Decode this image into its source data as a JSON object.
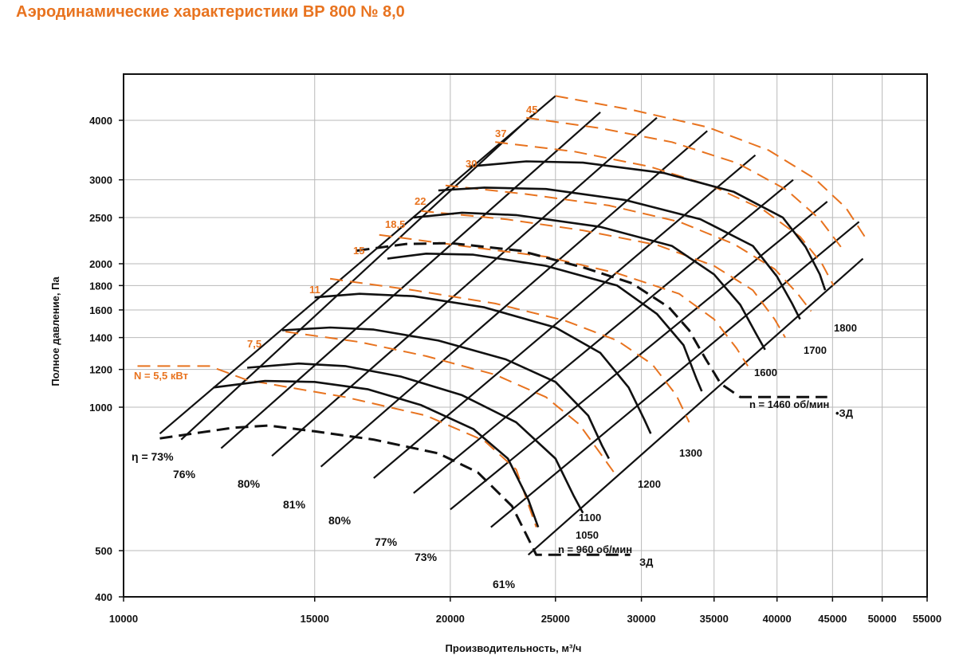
{
  "title": "Аэродинамические характеристики ВР 800 № 8,0",
  "chart_data": {
    "type": "line",
    "title": "Аэродинамические характеристики ВР 800 № 8,0",
    "xlabel": "Производительность, м³/ч",
    "ylabel": "Полное давление, Па",
    "xscale": "log",
    "yscale": "log",
    "xlim": [
      10000,
      55000
    ],
    "ylim": [
      400,
      5000
    ],
    "grid": true,
    "colors": {
      "black": "#111111",
      "orange": "#e8731f",
      "grid": "#b9b9b9",
      "frame": "#111111"
    },
    "x_ticks": [
      {
        "v": 10000,
        "label": "10000"
      },
      {
        "v": 15000,
        "label": "15000"
      },
      {
        "v": 20000,
        "label": "20000"
      },
      {
        "v": 25000,
        "label": "25000"
      },
      {
        "v": 30000,
        "label": "30000"
      },
      {
        "v": 35000,
        "label": "35000"
      },
      {
        "v": 40000,
        "label": "40000"
      },
      {
        "v": 45000,
        "label": "45000"
      },
      {
        "v": 50000,
        "label": "50000"
      },
      {
        "v": 55000,
        "label": "55000"
      }
    ],
    "y_ticks": [
      {
        "v": 400,
        "label": "400"
      },
      {
        "v": 500,
        "label": "500"
      },
      {
        "v": 1000,
        "label": "1000"
      },
      {
        "v": 1200,
        "label": "1200"
      },
      {
        "v": 1400,
        "label": "1400"
      },
      {
        "v": 1600,
        "label": "1600"
      },
      {
        "v": 1800,
        "label": "1800"
      },
      {
        "v": 2000,
        "label": "2000"
      },
      {
        "v": 2500,
        "label": "2500"
      },
      {
        "v": 3000,
        "label": "3000"
      },
      {
        "v": 4000,
        "label": "4000"
      }
    ],
    "pressure_curves": [
      {
        "rpm": "960",
        "points": [
          [
            12100,
            1100
          ],
          [
            13500,
            1135
          ],
          [
            15000,
            1130
          ],
          [
            16800,
            1090
          ],
          [
            18800,
            1010
          ],
          [
            21000,
            900
          ],
          [
            22600,
            780
          ],
          [
            23600,
            640
          ],
          [
            24100,
            560
          ]
        ]
      },
      {
        "rpm": "1050",
        "points": [
          [
            13000,
            1210
          ],
          [
            14500,
            1235
          ],
          [
            16000,
            1220
          ],
          [
            18000,
            1160
          ],
          [
            20500,
            1060
          ],
          [
            23000,
            930
          ],
          [
            25000,
            780
          ],
          [
            26000,
            650
          ],
          [
            26500,
            600
          ]
        ]
      },
      {
        "rpm": "1100",
        "points": [
          [
            14000,
            1450
          ],
          [
            15500,
            1470
          ],
          [
            17000,
            1455
          ],
          [
            19500,
            1380
          ],
          [
            22500,
            1260
          ],
          [
            25000,
            1130
          ],
          [
            26800,
            960
          ],
          [
            27600,
            830
          ],
          [
            28000,
            780
          ]
        ]
      },
      {
        "rpm": "1200",
        "points": [
          [
            15000,
            1700
          ],
          [
            16500,
            1730
          ],
          [
            18500,
            1710
          ],
          [
            21500,
            1620
          ],
          [
            25000,
            1470
          ],
          [
            27500,
            1300
          ],
          [
            29200,
            1100
          ],
          [
            30200,
            940
          ],
          [
            30600,
            880
          ]
        ]
      },
      {
        "rpm": "1300",
        "points": [
          [
            17500,
            2050
          ],
          [
            19000,
            2100
          ],
          [
            21000,
            2090
          ],
          [
            24500,
            1980
          ],
          [
            28500,
            1800
          ],
          [
            31000,
            1570
          ],
          [
            32800,
            1350
          ],
          [
            33700,
            1150
          ],
          [
            34100,
            1080
          ]
        ]
      },
      {
        "rpm": "1460",
        "points": [
          [
            18500,
            2500
          ],
          [
            20500,
            2560
          ],
          [
            23000,
            2530
          ],
          [
            27500,
            2390
          ],
          [
            32000,
            2180
          ],
          [
            35000,
            1900
          ],
          [
            37000,
            1640
          ],
          [
            38300,
            1420
          ],
          [
            39000,
            1320
          ]
        ]
      },
      {
        "rpm": "1600",
        "points": [
          [
            19500,
            2850
          ],
          [
            21500,
            2890
          ],
          [
            24500,
            2870
          ],
          [
            29000,
            2720
          ],
          [
            34000,
            2480
          ],
          [
            38000,
            2180
          ],
          [
            40000,
            1880
          ],
          [
            41300,
            1650
          ],
          [
            42000,
            1530
          ]
        ]
      },
      {
        "rpm": "1700",
        "points": [
          [
            20800,
            3200
          ],
          [
            23500,
            3280
          ],
          [
            26500,
            3260
          ],
          [
            31500,
            3100
          ],
          [
            36500,
            2830
          ],
          [
            40500,
            2500
          ],
          [
            42500,
            2170
          ],
          [
            43800,
            1900
          ],
          [
            44300,
            1760
          ]
        ]
      }
    ],
    "power_lines": [
      {
        "label": "N = 5,5 кВт",
        "points": [
          [
            10300,
            1220
          ],
          [
            12000,
            1220
          ],
          [
            13000,
            1140
          ],
          [
            16000,
            1050
          ],
          [
            19000,
            960
          ],
          [
            21500,
            850
          ],
          [
            23000,
            740
          ],
          [
            24000,
            560
          ]
        ]
      },
      {
        "label": "7,5",
        "points": [
          [
            14100,
            1440
          ],
          [
            16500,
            1370
          ],
          [
            19000,
            1280
          ],
          [
            22000,
            1170
          ],
          [
            24500,
            1050
          ],
          [
            26300,
            920
          ],
          [
            27500,
            800
          ],
          [
            28300,
            730
          ]
        ]
      },
      {
        "label": "11",
        "points": [
          [
            15500,
            1860
          ],
          [
            18500,
            1760
          ],
          [
            22000,
            1650
          ],
          [
            25500,
            1520
          ],
          [
            28500,
            1380
          ],
          [
            30700,
            1230
          ],
          [
            32300,
            1060
          ],
          [
            33200,
            930
          ]
        ]
      },
      {
        "label": "15",
        "points": [
          [
            17200,
            2300
          ],
          [
            20500,
            2180
          ],
          [
            24500,
            2070
          ],
          [
            28500,
            1910
          ],
          [
            32500,
            1730
          ],
          [
            35000,
            1530
          ],
          [
            36700,
            1330
          ],
          [
            37600,
            1220
          ]
        ]
      },
      {
        "label": "18,5",
        "points": [
          [
            18800,
            2580
          ],
          [
            22500,
            2480
          ],
          [
            26500,
            2350
          ],
          [
            31000,
            2190
          ],
          [
            35000,
            1980
          ],
          [
            38000,
            1760
          ],
          [
            39800,
            1530
          ],
          [
            40700,
            1400
          ]
        ]
      },
      {
        "label": "22",
        "points": [
          [
            19800,
            2920
          ],
          [
            23500,
            2800
          ],
          [
            28000,
            2650
          ],
          [
            32500,
            2450
          ],
          [
            36500,
            2200
          ],
          [
            39800,
            1950
          ],
          [
            41800,
            1730
          ],
          [
            43000,
            1590
          ]
        ]
      },
      {
        "label": "30",
        "points": [
          [
            22000,
            3600
          ],
          [
            26000,
            3440
          ],
          [
            30500,
            3200
          ],
          [
            35000,
            2900
          ],
          [
            38800,
            2600
          ],
          [
            42000,
            2280
          ],
          [
            44000,
            2000
          ],
          [
            45100,
            1800
          ]
        ]
      },
      {
        "label": "37",
        "points": [
          [
            23500,
            4050
          ],
          [
            27500,
            3850
          ],
          [
            32000,
            3600
          ],
          [
            36800,
            3250
          ],
          [
            40800,
            2860
          ],
          [
            43800,
            2480
          ],
          [
            45800,
            2170
          ]
        ]
      },
      {
        "label": "45",
        "points": [
          [
            25000,
            4500
          ],
          [
            29500,
            4200
          ],
          [
            34500,
            3870
          ],
          [
            39300,
            3460
          ],
          [
            43300,
            3020
          ],
          [
            46300,
            2620
          ],
          [
            48300,
            2260
          ]
        ]
      }
    ],
    "system_lines": [
      {
        "label": "n = 960 об/мин",
        "end_label": "ЗД",
        "points": [
          [
            10800,
            860
          ],
          [
            12600,
            905
          ],
          [
            13600,
            915
          ],
          [
            15000,
            890
          ],
          [
            17000,
            855
          ],
          [
            19500,
            800
          ],
          [
            21200,
            730
          ],
          [
            22800,
            620
          ],
          [
            23600,
            530
          ],
          [
            24000,
            490
          ],
          [
            25500,
            490
          ],
          [
            27500,
            490
          ],
          [
            29300,
            490
          ]
        ]
      },
      {
        "label": "n = 1460 об/мин",
        "end_label": "ЗД",
        "points": [
          [
            16400,
            2130
          ],
          [
            18200,
            2200
          ],
          [
            20000,
            2210
          ],
          [
            23200,
            2130
          ],
          [
            26600,
            1960
          ],
          [
            29400,
            1820
          ],
          [
            31800,
            1620
          ],
          [
            33200,
            1450
          ],
          [
            34400,
            1260
          ],
          [
            35500,
            1120
          ],
          [
            37000,
            1050
          ],
          [
            39000,
            1050
          ],
          [
            42500,
            1050
          ],
          [
            44500,
            1050
          ]
        ]
      }
    ],
    "rays": [
      {
        "points": [
          [
            10800,
            880
          ],
          [
            25000,
            4500
          ]
        ]
      },
      {
        "points": [
          [
            11300,
            855
          ],
          [
            23800,
            4100
          ]
        ]
      },
      {
        "points": [
          [
            12300,
            820
          ],
          [
            27500,
            4160
          ]
        ]
      },
      {
        "points": [
          [
            13700,
            790
          ],
          [
            31000,
            4050
          ]
        ]
      },
      {
        "points": [
          [
            15200,
            750
          ],
          [
            34500,
            3800
          ]
        ]
      },
      {
        "points": [
          [
            17000,
            710
          ],
          [
            38200,
            3380
          ]
        ]
      },
      {
        "points": [
          [
            18500,
            660
          ],
          [
            41400,
            3000
          ]
        ]
      },
      {
        "points": [
          [
            20000,
            610
          ],
          [
            44500,
            2700
          ]
        ]
      },
      {
        "points": [
          [
            21800,
            560
          ],
          [
            47600,
            2450
          ]
        ]
      }
    ],
    "rpm_ray": {
      "points": [
        [
          23600,
          490
        ],
        [
          48000,
          2050
        ]
      ]
    },
    "rpm_labels": [
      "1050",
      "1100",
      "1200",
      "1300",
      "1600",
      "1700",
      "1800"
    ],
    "efficiency_labels": [
      "η = 73%",
      "76%",
      "80%",
      "81%",
      "80%",
      "77%",
      "73%",
      "61%"
    ],
    "pressure_label_values": [
      "15"
    ]
  }
}
